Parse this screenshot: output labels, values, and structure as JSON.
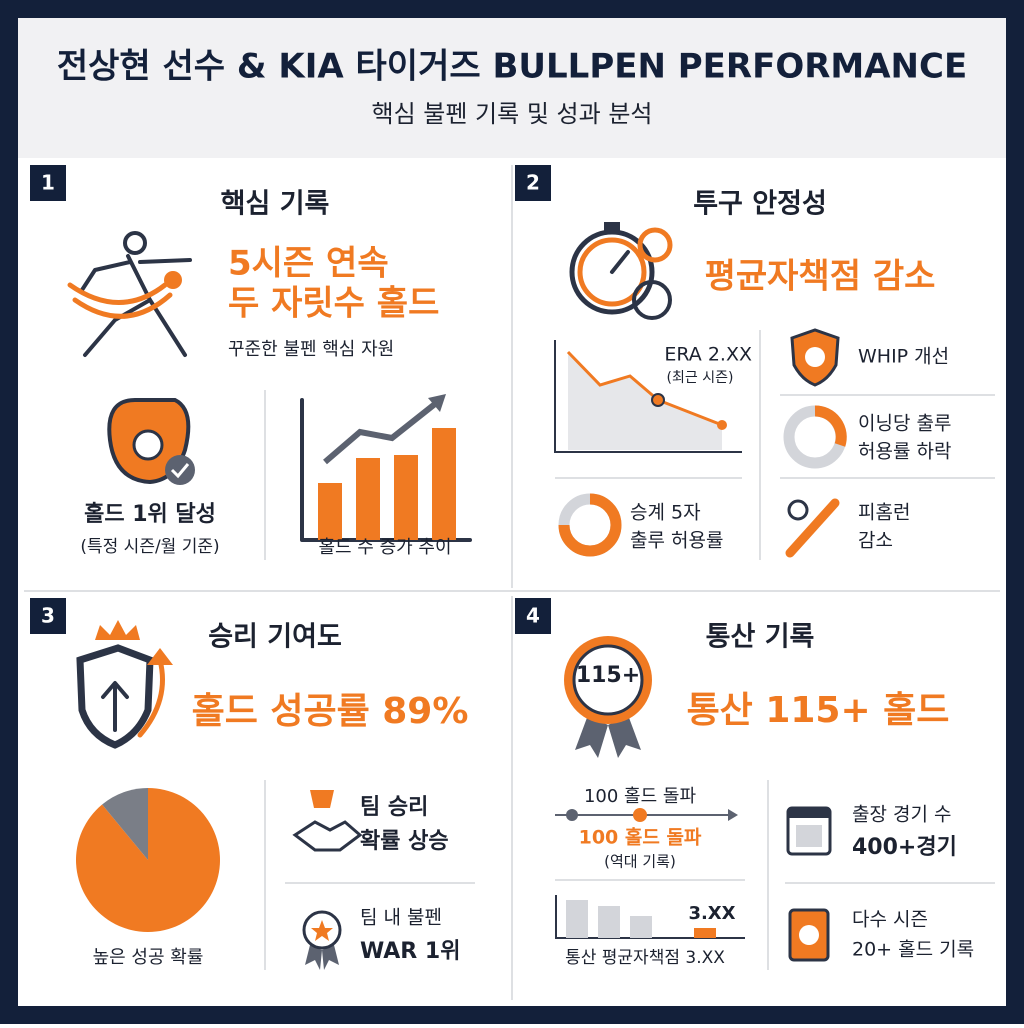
{
  "header": {
    "title": "전상현 선수 & KIA 타이거즈 BULLPEN PERFORMANCE",
    "subtitle": "핵심 불펜 기록 및 성과 분석"
  },
  "panels": [
    {
      "number": "1",
      "title": "핵심 기록",
      "headline": [
        "5시즌 연속",
        "두 자릿수 홀드"
      ],
      "caption": "꾸준한 불펜 핵심 자원",
      "items": [
        {
          "label": [
            "홀드 1위 달성"
          ],
          "sub": "(특정 시즌/월 기준)"
        },
        {
          "label": [
            "홀드 수 증가 추이"
          ]
        }
      ]
    },
    {
      "number": "2",
      "title": "투구 안정성",
      "headline": [
        "평균자책점 감소"
      ],
      "era": "ERA 2.XX",
      "era_sub": "(최근 시즌)",
      "items": [
        {
          "label": [
            "WHIP 개선"
          ]
        },
        {
          "label": [
            "이닝당 출루",
            "허용률 하락"
          ]
        },
        {
          "label": [
            "승계 5자",
            "출루 허용률"
          ]
        },
        {
          "label": [
            "피홈런",
            "감소"
          ]
        }
      ]
    },
    {
      "number": "3",
      "title": "승리 기여도",
      "headline": [
        "홀드 성공률 89%"
      ],
      "pie": {
        "value": 89,
        "label": "높은 성공 확률"
      },
      "items": [
        {
          "label": [
            "팀 승리",
            "확률 상승"
          ]
        },
        {
          "label": [
            "팀 내 불펜",
            "WAR 1위"
          ]
        }
      ]
    },
    {
      "number": "4",
      "title": "통산 기록",
      "badge": "115+",
      "headline": [
        "통산 115+ 홀드"
      ],
      "timeline": {
        "top": "100 홀드 돌파",
        "mark": "100 홀드 돌파",
        "sub": "(역대 기록)"
      },
      "era_bar": {
        "value_label": "3.XX",
        "label": "통산 평균자책점 3.XX"
      },
      "items": [
        {
          "label": [
            "출장 경기 수",
            "400+경기"
          ]
        },
        {
          "label": [
            "다수 시즌",
            "20+ 홀드 기록"
          ]
        }
      ]
    }
  ]
}
